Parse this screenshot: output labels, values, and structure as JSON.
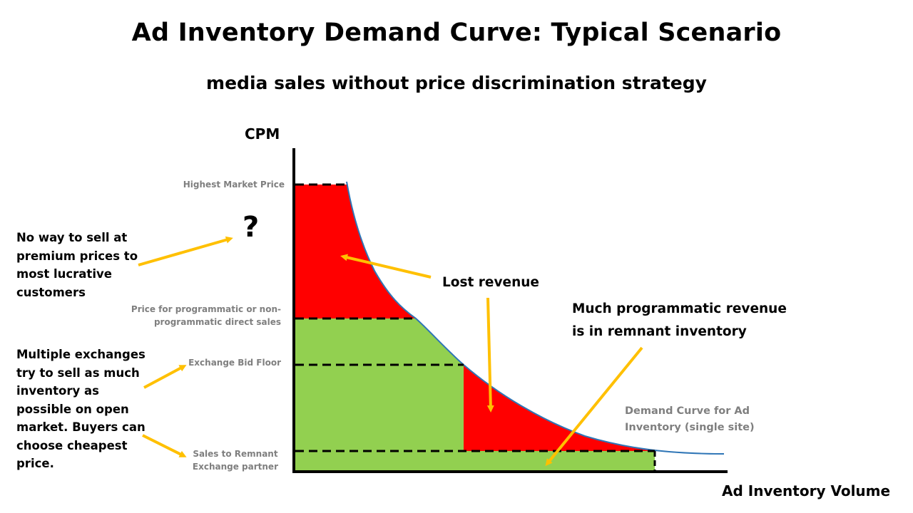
{
  "title": "Ad Inventory Demand Curve: Typical Scenario",
  "subtitle": "media sales without price discrimination strategy",
  "axes": {
    "y_label": "CPM",
    "x_label": "Ad Inventory Volume"
  },
  "levels": {
    "highest": "Highest Market Price",
    "direct_line1": "Price for programmatic or non-",
    "direct_line2": "programmatic direct sales",
    "bid_floor": "Exchange Bid Floor",
    "remnant_line1": "Sales to Remnant",
    "remnant_line2": "Exchange partner"
  },
  "question_mark": "?",
  "notes": {
    "premium": [
      "No way to sell at",
      "premium prices to",
      "most lucrative",
      "customers"
    ],
    "exchanges": [
      "Multiple exchanges",
      "try to sell as much",
      "inventory as",
      "possible on open",
      "market. Buyers can",
      "choose cheapest",
      "price."
    ]
  },
  "callouts": {
    "lost_revenue": "Lost revenue",
    "programmatic_line1": "Much programmatic revenue",
    "programmatic_line2": "is in remnant inventory"
  },
  "curve_label": {
    "line1": "Demand Curve for Ad",
    "line2": "Inventory (single site)"
  },
  "colors": {
    "lost": "#ff0000",
    "captured": "#92d050",
    "curve": "#2e75b6",
    "arrow": "#ffc000",
    "axis": "#000000"
  }
}
